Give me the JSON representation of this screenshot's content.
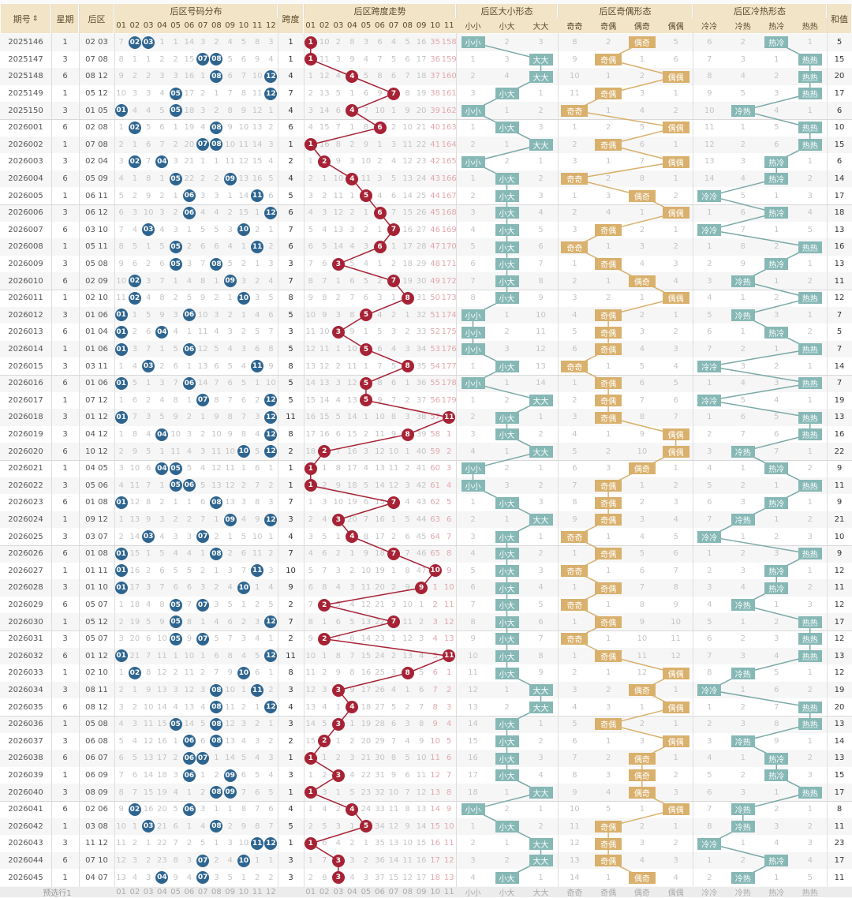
{
  "header": {
    "period": "期号",
    "sort_icon": "sort-icon",
    "weekday": "星期",
    "back": "后区",
    "dist_title": "后区号码分布",
    "dist_cols": [
      "01",
      "02",
      "03",
      "04",
      "05",
      "06",
      "07",
      "08",
      "09",
      "10",
      "11",
      "12"
    ],
    "span": "跨度",
    "trend_title": "后区跨度走势",
    "trend_cols": [
      "01",
      "02",
      "03",
      "04",
      "05",
      "06",
      "07",
      "08",
      "09",
      "10",
      "11"
    ],
    "size_title": "后区大小形态",
    "size_cols": [
      "小小",
      "小大",
      "大大"
    ],
    "oe_title": "后区奇偶形态",
    "oe_cols": [
      "奇奇",
      "奇偶",
      "偶奇",
      "偶偶"
    ],
    "hc_title": "后区冷热形态",
    "hc_cols": [
      "冷冷",
      "冷热",
      "热冷",
      "热热"
    ],
    "sum": "和值"
  },
  "first_row_omission": {
    "dist": [
      7,
      null,
      null,
      1,
      1,
      14,
      3,
      2,
      4,
      5,
      8,
      3
    ],
    "trend": [
      null,
      10,
      2,
      8,
      3,
      6,
      4,
      5,
      16,
      35,
      158
    ],
    "size": [
      null,
      2,
      3
    ],
    "oe": [
      8,
      2,
      null,
      5
    ],
    "hc": [
      6,
      2,
      null,
      1
    ]
  },
  "colors": {
    "ball_blue": "#2e6590",
    "ball_red": "#a62234",
    "tag_teal": "#86b8b6",
    "tag_gold": "#d9b06c",
    "header_bg": "#f2e4c6"
  },
  "rows": [
    {
      "period": "2025146",
      "weekday": "1",
      "back": "02 03",
      "span": "1",
      "size": "小小",
      "oe": "偶奇",
      "hc": "热冷",
      "sum": "5"
    },
    {
      "period": "2025147",
      "weekday": "3",
      "back": "07 08",
      "span": "1",
      "size": "大大",
      "oe": "奇偶",
      "hc": "热热",
      "sum": "15"
    },
    {
      "period": "2025148",
      "weekday": "6",
      "back": "08 12",
      "span": "4",
      "size": "大大",
      "oe": "偶偶",
      "hc": "热热",
      "sum": "20"
    },
    {
      "period": "2025149",
      "weekday": "1",
      "back": "05 12",
      "span": "7",
      "size": "小大",
      "oe": "奇偶",
      "hc": "热热",
      "sum": "17"
    },
    {
      "period": "2025150",
      "weekday": "3",
      "back": "01 05",
      "span": "4",
      "size": "小小",
      "oe": "奇奇",
      "hc": "冷热",
      "sum": "6"
    },
    {
      "period": "2026001",
      "weekday": "6",
      "back": "02 08",
      "span": "6",
      "size": "小大",
      "oe": "偶偶",
      "hc": "热热",
      "sum": "10"
    },
    {
      "period": "2026002",
      "weekday": "1",
      "back": "07 08",
      "span": "1",
      "size": "大大",
      "oe": "奇偶",
      "hc": "热热",
      "sum": "15"
    },
    {
      "period": "2026003",
      "weekday": "3",
      "back": "02 04",
      "span": "2",
      "size": "小小",
      "oe": "偶偶",
      "hc": "热冷",
      "sum": "6"
    },
    {
      "period": "2026004",
      "weekday": "6",
      "back": "05 09",
      "span": "4",
      "size": "小大",
      "oe": "奇奇",
      "hc": "热冷",
      "sum": "14"
    },
    {
      "period": "2026005",
      "weekday": "1",
      "back": "06 11",
      "span": "5",
      "size": "小大",
      "oe": "偶奇",
      "hc": "冷冷",
      "sum": "17"
    },
    {
      "period": "2026006",
      "weekday": "3",
      "back": "06 12",
      "span": "6",
      "size": "小大",
      "oe": "偶偶",
      "hc": "热冷",
      "sum": "18"
    },
    {
      "period": "2026007",
      "weekday": "6",
      "back": "03 10",
      "span": "7",
      "size": "小大",
      "oe": "奇偶",
      "hc": "冷冷",
      "sum": "13"
    },
    {
      "period": "2026008",
      "weekday": "1",
      "back": "05 11",
      "span": "6",
      "size": "小大",
      "oe": "奇奇",
      "hc": "热热",
      "sum": "16"
    },
    {
      "period": "2026009",
      "weekday": "3",
      "back": "05 08",
      "span": "3",
      "size": "小大",
      "oe": "奇偶",
      "hc": "热冷",
      "sum": "13"
    },
    {
      "period": "2026010",
      "weekday": "6",
      "back": "02 09",
      "span": "7",
      "size": "小大",
      "oe": "偶奇",
      "hc": "冷热",
      "sum": "11"
    },
    {
      "period": "2026011",
      "weekday": "1",
      "back": "02 10",
      "span": "8",
      "size": "小大",
      "oe": "偶偶",
      "hc": "热热",
      "sum": "12"
    },
    {
      "period": "2026012",
      "weekday": "3",
      "back": "01 06",
      "span": "5",
      "size": "小小",
      "oe": "奇偶",
      "hc": "冷热",
      "sum": "7"
    },
    {
      "period": "2026013",
      "weekday": "6",
      "back": "01 04",
      "span": "3",
      "size": "小小",
      "oe": "奇偶",
      "hc": "热冷",
      "sum": "5"
    },
    {
      "period": "2026014",
      "weekday": "1",
      "back": "01 06",
      "span": "5",
      "size": "小小",
      "oe": "奇偶",
      "hc": "热热",
      "sum": "7"
    },
    {
      "period": "2026015",
      "weekday": "3",
      "back": "03 11",
      "span": "8",
      "size": "小大",
      "oe": "奇奇",
      "hc": "冷冷",
      "sum": "14"
    },
    {
      "period": "2026016",
      "weekday": "6",
      "back": "01 06",
      "span": "5",
      "size": "小小",
      "oe": "奇偶",
      "hc": "热热",
      "sum": "7"
    },
    {
      "period": "2026017",
      "weekday": "1",
      "back": "07 12",
      "span": "5",
      "size": "大大",
      "oe": "奇偶",
      "hc": "冷冷",
      "sum": "19"
    },
    {
      "period": "2026018",
      "weekday": "3",
      "back": "01 12",
      "span": "11",
      "size": "小大",
      "oe": "奇偶",
      "hc": "热热",
      "sum": "13"
    },
    {
      "period": "2026019",
      "weekday": "3",
      "back": "04 12",
      "span": "8",
      "size": "小大",
      "oe": "偶偶",
      "hc": "热热",
      "sum": "16"
    },
    {
      "period": "2026020",
      "weekday": "6",
      "back": "10 12",
      "span": "2",
      "size": "大大",
      "oe": "偶偶",
      "hc": "冷热",
      "sum": "22"
    },
    {
      "period": "2026021",
      "weekday": "1",
      "back": "04 05",
      "span": "1",
      "size": "小小",
      "oe": "偶奇",
      "hc": "热冷",
      "sum": "9"
    },
    {
      "period": "2026022",
      "weekday": "3",
      "back": "05 06",
      "span": "1",
      "size": "小小",
      "oe": "奇偶",
      "hc": "热热",
      "sum": "11"
    },
    {
      "period": "2026023",
      "weekday": "6",
      "back": "01 08",
      "span": "7",
      "size": "小大",
      "oe": "奇偶",
      "hc": "热冷",
      "sum": "9"
    },
    {
      "period": "2026024",
      "weekday": "1",
      "back": "09 12",
      "span": "3",
      "size": "大大",
      "oe": "奇偶",
      "hc": "冷热",
      "sum": "21"
    },
    {
      "period": "2026025",
      "weekday": "3",
      "back": "03 07",
      "span": "4",
      "size": "小大",
      "oe": "奇奇",
      "hc": "冷冷",
      "sum": "10"
    },
    {
      "period": "2026026",
      "weekday": "6",
      "back": "01 08",
      "span": "7",
      "size": "小大",
      "oe": "奇偶",
      "hc": "热热",
      "sum": "9"
    },
    {
      "period": "2026027",
      "weekday": "1",
      "back": "01 11",
      "span": "10",
      "size": "小大",
      "oe": "奇奇",
      "hc": "热冷",
      "sum": "12"
    },
    {
      "period": "2026028",
      "weekday": "3",
      "back": "01 10",
      "span": "9",
      "size": "小大",
      "oe": "奇偶",
      "hc": "热冷",
      "sum": "11"
    },
    {
      "period": "2026029",
      "weekday": "6",
      "back": "05 07",
      "span": "2",
      "size": "小大",
      "oe": "奇奇",
      "hc": "冷热",
      "sum": "12"
    },
    {
      "period": "2026030",
      "weekday": "1",
      "back": "05 12",
      "span": "7",
      "size": "小大",
      "oe": "奇偶",
      "hc": "热热",
      "sum": "17"
    },
    {
      "period": "2026031",
      "weekday": "3",
      "back": "05 07",
      "span": "2",
      "size": "小大",
      "oe": "奇奇",
      "hc": "热热",
      "sum": "12"
    },
    {
      "period": "2026032",
      "weekday": "6",
      "back": "01 12",
      "span": "11",
      "size": "小大",
      "oe": "奇偶",
      "hc": "热热",
      "sum": "13"
    },
    {
      "period": "2026033",
      "weekday": "1",
      "back": "02 10",
      "span": "8",
      "size": "小大",
      "oe": "偶偶",
      "hc": "冷热",
      "sum": "12"
    },
    {
      "period": "2026034",
      "weekday": "3",
      "back": "08 11",
      "span": "3",
      "size": "大大",
      "oe": "偶奇",
      "hc": "冷冷",
      "sum": "19"
    },
    {
      "period": "2026035",
      "weekday": "6",
      "back": "08 12",
      "span": "4",
      "size": "大大",
      "oe": "偶偶",
      "hc": "热热",
      "sum": "20"
    },
    {
      "period": "2026036",
      "weekday": "1",
      "back": "05 08",
      "span": "3",
      "size": "小大",
      "oe": "奇偶",
      "hc": "热热",
      "sum": "13"
    },
    {
      "period": "2026037",
      "weekday": "3",
      "back": "06 08",
      "span": "2",
      "size": "小大",
      "oe": "偶偶",
      "hc": "冷热",
      "sum": "14"
    },
    {
      "period": "2026038",
      "weekday": "6",
      "back": "06 07",
      "span": "1",
      "size": "小大",
      "oe": "偶奇",
      "hc": "热冷",
      "sum": "13"
    },
    {
      "period": "2026039",
      "weekday": "1",
      "back": "06 09",
      "span": "3",
      "size": "小大",
      "oe": "偶奇",
      "hc": "热冷",
      "sum": "15"
    },
    {
      "period": "2026040",
      "weekday": "3",
      "back": "08 09",
      "span": "1",
      "size": "大大",
      "oe": "偶奇",
      "hc": "热热",
      "sum": "17"
    },
    {
      "period": "2026041",
      "weekday": "6",
      "back": "02 06",
      "span": "4",
      "size": "小小",
      "oe": "偶偶",
      "hc": "冷热",
      "sum": "8"
    },
    {
      "period": "2026042",
      "weekday": "1",
      "back": "03 08",
      "span": "5",
      "size": "小大",
      "oe": "奇偶",
      "hc": "冷热",
      "sum": "11"
    },
    {
      "period": "2026043",
      "weekday": "3",
      "back": "11 12",
      "span": "1",
      "size": "大大",
      "oe": "奇偶",
      "hc": "冷冷",
      "sum": "23"
    },
    {
      "period": "2026044",
      "weekday": "6",
      "back": "07 10",
      "span": "3",
      "size": "大大",
      "oe": "奇偶",
      "hc": "热冷",
      "sum": "17"
    },
    {
      "period": "2026045",
      "weekday": "1",
      "back": "04 07",
      "span": "3",
      "size": "小大",
      "oe": "偶奇",
      "hc": "冷热",
      "sum": "11"
    }
  ],
  "footer": {
    "label": "预选行1"
  }
}
